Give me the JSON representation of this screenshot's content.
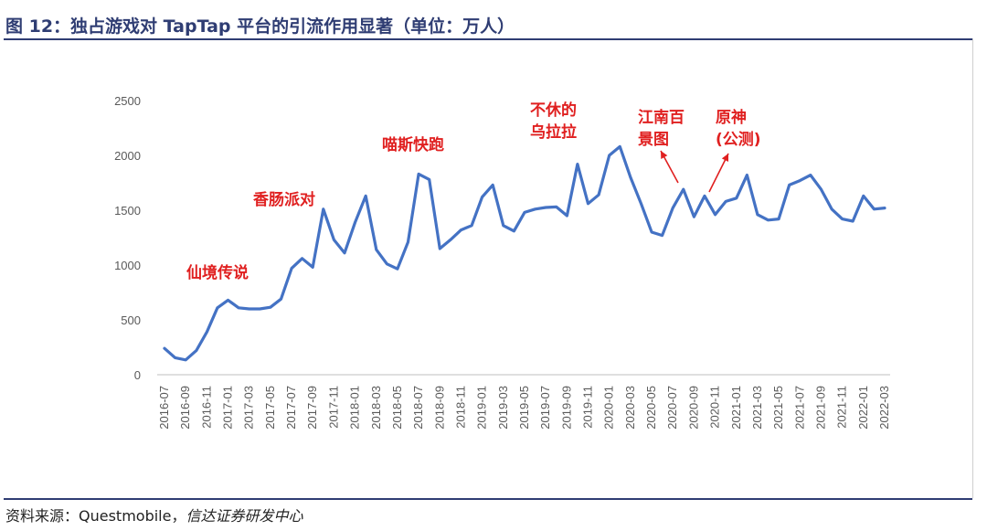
{
  "figure": {
    "title": "图 12：独占游戏对 TapTap 平台的引流作用显著（单位：万人）",
    "source_label": "资料来源：",
    "source_body": "Questmobile，",
    "source_italic": "信达证券研发中心"
  },
  "chart_data": {
    "type": "line",
    "title": "",
    "xlabel": "",
    "ylabel": "",
    "ylim": [
      0,
      2500
    ],
    "yticks": [
      0,
      500,
      1000,
      1500,
      2000,
      2500
    ],
    "grid": false,
    "legend": "none",
    "x_tick_labels": [
      "2016-07",
      "2016-09",
      "2016-11",
      "2017-01",
      "2017-03",
      "2017-05",
      "2017-07",
      "2017-09",
      "2017-11",
      "2018-01",
      "2018-03",
      "2018-05",
      "2018-07",
      "2018-09",
      "2018-11",
      "2019-01",
      "2019-03",
      "2019-05",
      "2019-07",
      "2019-09",
      "2019-11",
      "2020-01",
      "2020-03",
      "2020-05",
      "2020-07",
      "2020-09",
      "2020-11",
      "2021-01",
      "2021-03",
      "2021-05",
      "2021-07",
      "2021-09",
      "2021-11",
      "2022-01",
      "2022-03"
    ],
    "x": [
      "2016-07",
      "2016-08",
      "2016-09",
      "2016-10",
      "2016-11",
      "2016-12",
      "2017-01",
      "2017-02",
      "2017-03",
      "2017-04",
      "2017-05",
      "2017-06",
      "2017-07",
      "2017-08",
      "2017-09",
      "2017-10",
      "2017-11",
      "2017-12",
      "2018-01",
      "2018-02",
      "2018-03",
      "2018-04",
      "2018-05",
      "2018-06",
      "2018-07",
      "2018-08",
      "2018-09",
      "2018-10",
      "2018-11",
      "2018-12",
      "2019-01",
      "2019-02",
      "2019-03",
      "2019-04",
      "2019-05",
      "2019-06",
      "2019-07",
      "2019-08",
      "2019-09",
      "2019-10",
      "2019-11",
      "2019-12",
      "2020-01",
      "2020-02",
      "2020-03",
      "2020-04",
      "2020-05",
      "2020-06",
      "2020-07",
      "2020-08",
      "2020-09",
      "2020-10",
      "2020-11",
      "2020-12",
      "2021-01",
      "2021-02",
      "2021-03",
      "2021-04",
      "2021-05",
      "2021-06",
      "2021-07",
      "2021-08",
      "2021-09",
      "2021-10",
      "2021-11",
      "2021-12",
      "2022-01",
      "2022-02",
      "2022-03"
    ],
    "series": [
      {
        "color": "#4472c4",
        "values": [
          240,
          155,
          135,
          220,
          390,
          610,
          680,
          610,
          600,
          600,
          615,
          690,
          970,
          1060,
          980,
          1510,
          1230,
          1110,
          1390,
          1630,
          1140,
          1010,
          965,
          1210,
          1830,
          1780,
          1150,
          1230,
          1320,
          1360,
          1620,
          1730,
          1360,
          1310,
          1480,
          1510,
          1525,
          1530,
          1450,
          1920,
          1560,
          1640,
          2000,
          2080,
          1800,
          1560,
          1300,
          1270,
          1520,
          1690,
          1440,
          1630,
          1460,
          1580,
          1610,
          1820,
          1460,
          1410,
          1420,
          1730,
          1770,
          1820,
          1690,
          1510,
          1420,
          1400,
          1630,
          1510,
          1520
        ]
      }
    ],
    "annotations": [
      {
        "lines": [
          "仙境传说"
        ]
      },
      {
        "lines": [
          "香肠派对"
        ]
      },
      {
        "lines": [
          "喵斯快跑"
        ]
      },
      {
        "lines": [
          "不休的",
          "乌拉拉"
        ]
      },
      {
        "lines": [
          "江南百",
          "景图"
        ]
      },
      {
        "lines": [
          "原神",
          "(公测)"
        ]
      }
    ]
  }
}
